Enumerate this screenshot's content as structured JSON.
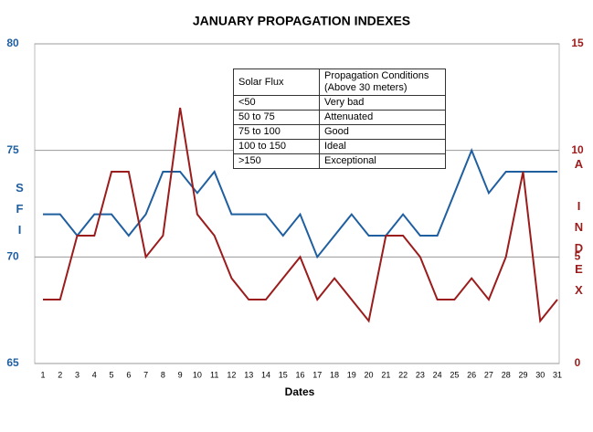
{
  "chart_data": {
    "type": "line",
    "title": "JANUARY PROPAGATION  INDEXES",
    "x_label": "Dates",
    "y_label": "SFI",
    "y2_label": "A INDEX",
    "categories": [
      "1",
      "2",
      "3",
      "4",
      "5",
      "6",
      "7",
      "8",
      "9",
      "10",
      "11",
      "12",
      "13",
      "14",
      "15",
      "16",
      "17",
      "18",
      "19",
      "20",
      "21",
      "22",
      "23",
      "24",
      "25",
      "26",
      "27",
      "28",
      "29",
      "30",
      "31"
    ],
    "series": [
      {
        "name": "SFI",
        "color": "#1f5fa0",
        "values": [
          72,
          72,
          71,
          72,
          72,
          71,
          72,
          74,
          74,
          73,
          74,
          72,
          72,
          72,
          71,
          72,
          70,
          71,
          72,
          71,
          71,
          72,
          71,
          71,
          73,
          75,
          73,
          74,
          74,
          74,
          74
        ]
      },
      {
        "name": "A INDEX",
        "color": "#9b1c1c",
        "axis": "y2",
        "values": [
          3,
          3,
          6,
          6,
          9,
          9,
          5,
          6,
          12,
          7,
          6,
          4,
          3,
          3,
          4,
          5,
          3,
          4,
          3,
          2,
          6,
          6,
          5,
          3,
          3,
          4,
          3,
          5,
          9,
          2,
          3
        ]
      }
    ],
    "ylim": [
      65,
      80
    ],
    "yticks": [
      65,
      70,
      75,
      80
    ],
    "y2lim": [
      0,
      15
    ],
    "y2ticks": [
      0,
      5,
      10,
      15
    ],
    "grid": true
  },
  "table": {
    "columns": [
      "Solar Flux",
      "Propagation Conditions\n(Above 30 meters)"
    ],
    "rows": [
      [
        "<50",
        "Very bad"
      ],
      [
        "50 to 75",
        "Attenuated"
      ],
      [
        "75 to 100",
        "Good"
      ],
      [
        "100 to 150",
        "Ideal"
      ],
      [
        ">150",
        "Exceptional"
      ]
    ]
  }
}
